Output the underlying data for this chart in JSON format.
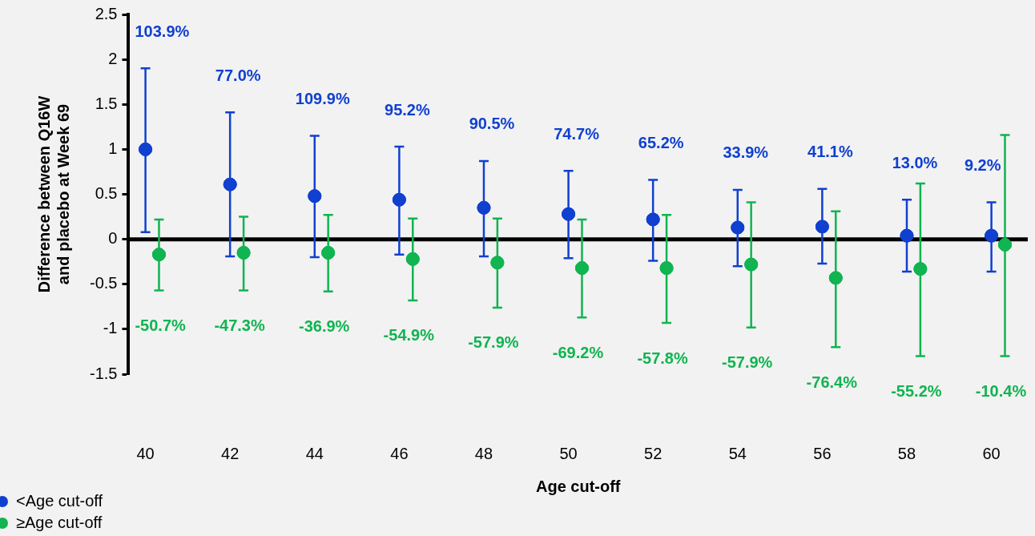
{
  "chart_data": {
    "type": "scatter",
    "xlabel": "Age cut-off",
    "ylabel": "Difference between Q16W and placebo at Week 69",
    "categories": [
      "40",
      "42",
      "44",
      "46",
      "48",
      "50",
      "52",
      "54",
      "56",
      "58",
      "60"
    ],
    "series": [
      {
        "name": "<Age cut-off",
        "color": "#1040d0",
        "values": [
          1.0,
          0.61,
          0.48,
          0.44,
          0.35,
          0.28,
          0.22,
          0.13,
          0.14,
          0.04,
          0.04
        ],
        "errors": [
          [
            0.08,
            1.9
          ],
          [
            -0.19,
            1.41
          ],
          [
            -0.2,
            1.15
          ],
          [
            -0.17,
            1.03
          ],
          [
            -0.19,
            0.87
          ],
          [
            -0.21,
            0.76
          ],
          [
            -0.24,
            0.66
          ],
          [
            -0.3,
            0.55
          ],
          [
            -0.27,
            0.56
          ],
          [
            -0.36,
            0.44
          ],
          [
            -0.36,
            0.41
          ]
        ]
      },
      {
        "name": "≥Age cut-off",
        "color": "#10b450",
        "values": [
          -0.17,
          -0.15,
          -0.15,
          -0.22,
          -0.26,
          -0.32,
          -0.32,
          -0.28,
          -0.43,
          -0.33,
          -0.06
        ],
        "errors": [
          [
            -0.57,
            0.22
          ],
          [
            -0.57,
            0.25
          ],
          [
            -0.58,
            0.27
          ],
          [
            -0.68,
            0.23
          ],
          [
            -0.76,
            0.23
          ],
          [
            -0.87,
            0.22
          ],
          [
            -0.93,
            0.27
          ],
          [
            -0.98,
            0.41
          ],
          [
            -1.2,
            0.31
          ],
          [
            -1.3,
            0.62
          ],
          [
            -1.3,
            1.16
          ]
        ]
      }
    ],
    "annotations": [
      "103.9%",
      "77.0%",
      "109.9%",
      "95.2%",
      "90.5%",
      "74.7%",
      "65.2%",
      "33.9%",
      "41.1%",
      "13.0%",
      "9.2%",
      "-50.7%",
      "-47.3%",
      "-36.9%",
      "-54.9%",
      "-57.9%",
      "-69.2%",
      "-57.8%",
      "-57.9%",
      "-76.4%",
      "-55.2%",
      "-10.4%"
    ],
    "ylim": [
      -1.5,
      2.5
    ],
    "yticks": [
      -1.5,
      -1,
      -0.5,
      0,
      0.5,
      1,
      1.5,
      2,
      2.5
    ],
    "ref_lines": [
      {
        "axis": "y",
        "value": 0,
        "color": "#000000"
      }
    ],
    "grid": false,
    "legend": "bottom left",
    "marker": "circle"
  }
}
